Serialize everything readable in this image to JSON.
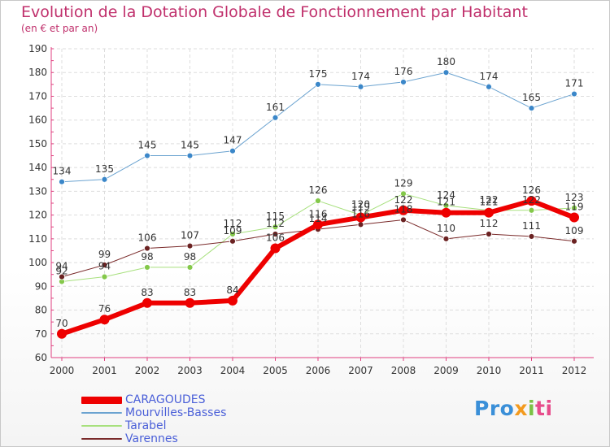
{
  "title": "Evolution de la Dotation Globale de Fonctionnement par Habitant",
  "subtitle": "(en € et par an)",
  "logo": {
    "p1": "Pro",
    "p2": "x",
    "p3": "i",
    "p4": "ti"
  },
  "colors": {
    "axis": "#e04080",
    "grid": "#dddddd",
    "tick_text": "#333333",
    "value_text": "#333333"
  },
  "chart_data": {
    "type": "line",
    "title": "Evolution de la Dotation Globale de Fonctionnement par Habitant",
    "ylabel": "(en € et par an)",
    "x": [
      "2000",
      "2001",
      "2002",
      "2003",
      "2004",
      "2005",
      "2006",
      "2007",
      "2008",
      "2009",
      "2010",
      "2011",
      "2012"
    ],
    "ylim": [
      60,
      190
    ],
    "yticks": [
      60,
      70,
      80,
      90,
      100,
      110,
      120,
      130,
      140,
      150,
      160,
      170,
      180,
      190
    ],
    "grid": true,
    "legend_position": "bottom-left",
    "series": [
      {
        "name": "CARAGOUDES",
        "color": "#ee0000",
        "marker": "#ee0000",
        "width": 6,
        "values": [
          70,
          76,
          83,
          83,
          84,
          106,
          116,
          119,
          122,
          121,
          121,
          126,
          119
        ],
        "labels": [
          "70",
          "76",
          "83",
          "83",
          "84",
          "106",
          "116",
          "119",
          "122",
          "121",
          "121",
          "126",
          "119"
        ]
      },
      {
        "name": "Mourvilles-Basses",
        "color": "#6ba3d0",
        "marker": "#3b87c9",
        "width": 1,
        "values": [
          134,
          135,
          145,
          145,
          147,
          161,
          175,
          174,
          176,
          180,
          174,
          165,
          171
        ],
        "labels": [
          "134",
          "135",
          "145",
          "145",
          "147",
          "161",
          "175",
          "174",
          "176",
          "180",
          "174",
          "165",
          "171"
        ]
      },
      {
        "name": "Tarabel",
        "color": "#a7e07d",
        "marker": "#84c84a",
        "width": 1,
        "values": [
          92,
          94,
          98,
          98,
          112,
          115,
          126,
          120,
          129,
          124,
          122,
          122,
          123
        ],
        "labels": [
          "92",
          "94",
          "98",
          "98",
          "112",
          "115",
          "126",
          "120",
          "129",
          "124",
          "122",
          "122",
          "123"
        ]
      },
      {
        "name": "Varennes",
        "color": "#7a2a2a",
        "marker": "#6b2222",
        "width": 1,
        "values": [
          94,
          99,
          106,
          107,
          109,
          112,
          114,
          116,
          118,
          110,
          112,
          111,
          109
        ],
        "labels": [
          "94",
          "99",
          "106",
          "107",
          "109",
          "112",
          "114",
          "116",
          "118",
          "110",
          "112",
          "111",
          "109"
        ]
      }
    ]
  },
  "legend": [
    {
      "label": "CARAGOUDES",
      "color": "#ee0000",
      "thickness": 9
    },
    {
      "label": "Mourvilles-Basses",
      "color": "#6ba3d0",
      "thickness": 2
    },
    {
      "label": "Tarabel",
      "color": "#a7e07d",
      "thickness": 2
    },
    {
      "label": "Varennes",
      "color": "#7a2a2a",
      "thickness": 2
    }
  ]
}
